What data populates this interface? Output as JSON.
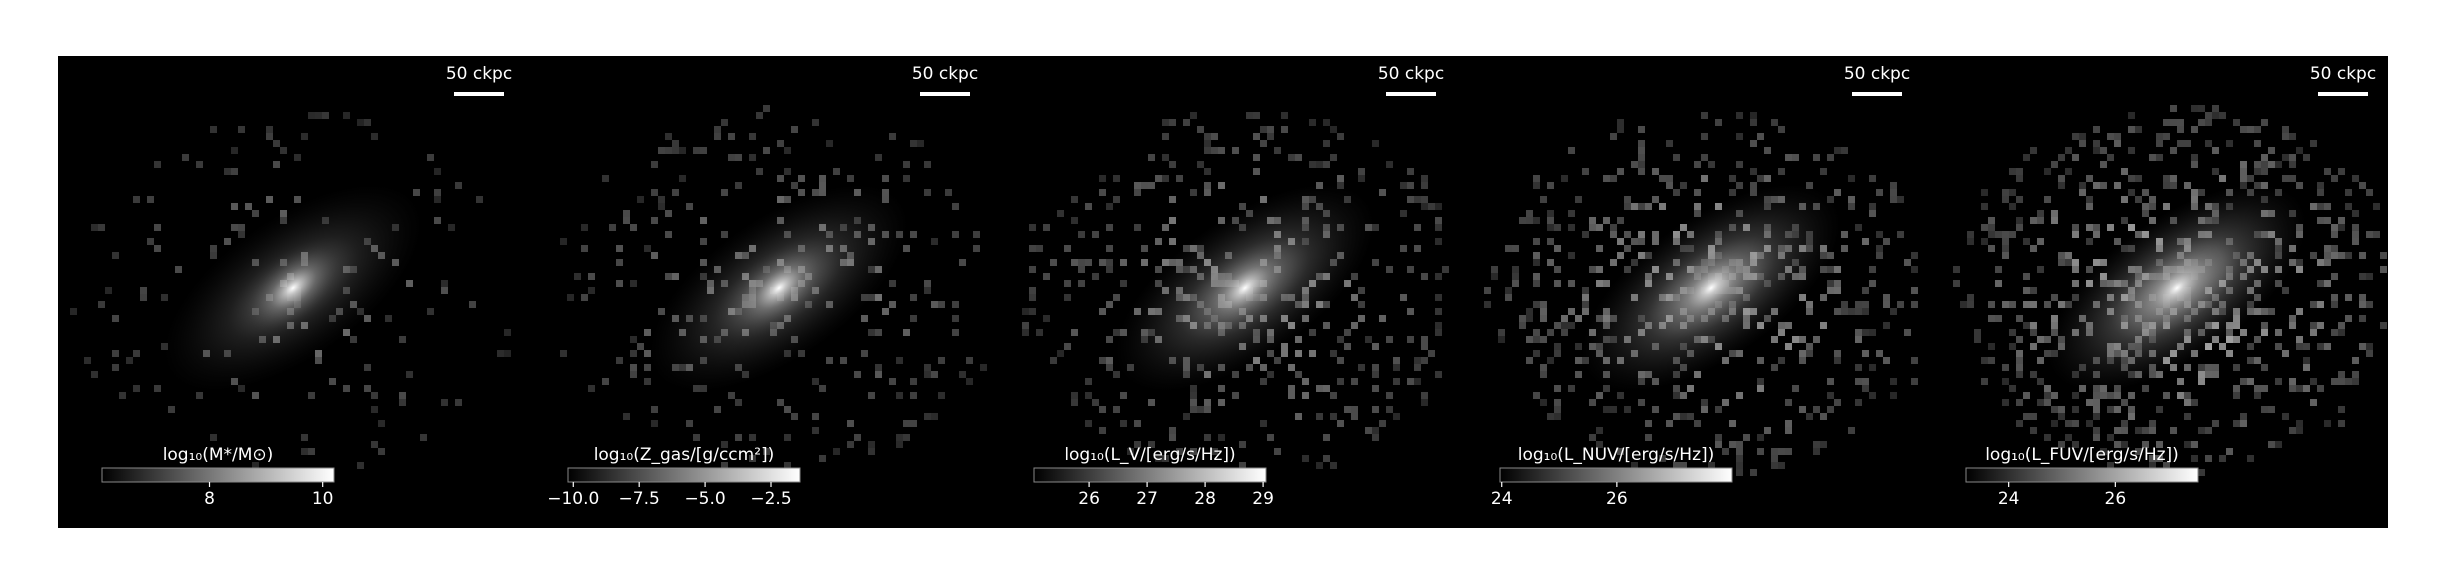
{
  "chart_data": [
    {
      "type": "image",
      "scale_label": "50 ckpc",
      "colormap": "gray",
      "colorbar_label": "log₁₀(M*/M⊙)",
      "xlim": [
        6.1,
        10.2
      ],
      "xticks": [
        8,
        10
      ]
    },
    {
      "type": "image",
      "scale_label": "50 ckpc",
      "colormap": "gray",
      "colorbar_label": "log₁₀(Z_gas/[g/ccm²])",
      "xlim": [
        -10.2,
        -1.4
      ],
      "xticks": [
        {
          "value": -10,
          "label": "−10.0"
        },
        {
          "value": -7.5,
          "label": "−7.5"
        },
        {
          "value": -5,
          "label": "−5.0"
        },
        {
          "value": -2.5,
          "label": "−2.5"
        }
      ]
    },
    {
      "type": "image",
      "scale_label": "50 ckpc",
      "colormap": "gray",
      "colorbar_label": "log₁₀(L_V/[erg/s/Hz])",
      "xlim": [
        25.05,
        29.05
      ],
      "xticks": [
        26,
        27,
        28,
        29
      ]
    },
    {
      "type": "image",
      "scale_label": "50 ckpc",
      "colormap": "gray",
      "colorbar_label": "log₁₀(L_NUV/[erg/s/Hz])",
      "xlim": [
        23.97,
        28.0
      ],
      "xticks": [
        24,
        26
      ]
    },
    {
      "type": "image",
      "scale_label": "50 ckpc",
      "colormap": "gray",
      "colorbar_label": "log₁₀(L_FUV/[erg/s/Hz])",
      "xlim": [
        23.2,
        27.55
      ],
      "xticks": [
        24,
        26
      ]
    }
  ]
}
